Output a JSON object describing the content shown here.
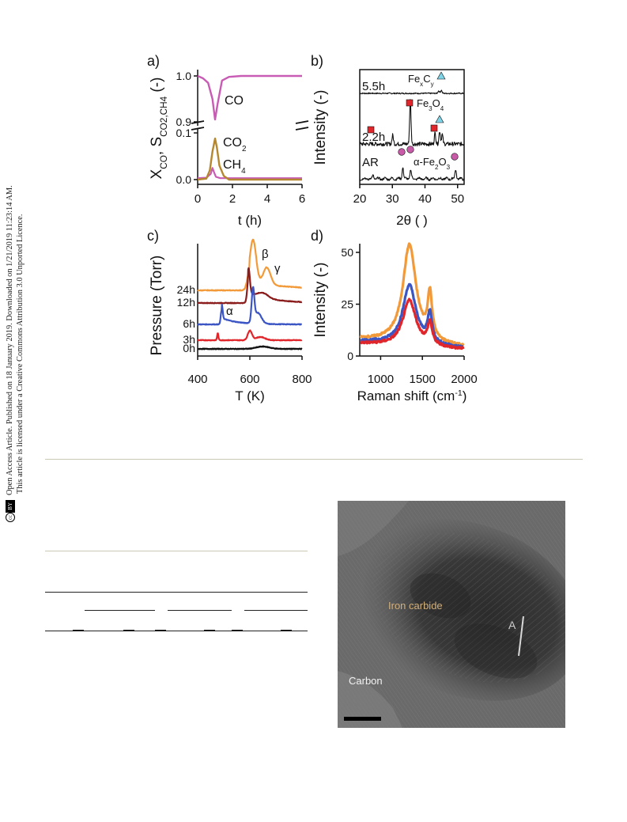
{
  "sidenote": {
    "cc_label": "cc",
    "by_label": "BY",
    "line1": "Open Access Article. Published on 18 January 2019. Downloaded on 1/21/2019 11:23:14 AM.",
    "line2": "This article is licensed under a Creative Commons Attribution 3.0 Unported Licence."
  },
  "colors": {
    "magenta": "#c85bb4",
    "gold": "#b5872e",
    "orange": "#f29a3a",
    "darkred": "#8a1c1c",
    "blue": "#3b55c4",
    "red": "#e0262b",
    "black": "#111111",
    "marker_red": "#e0262b",
    "marker_cyan": "#7fd3e6",
    "marker_pink": "#c95aa8"
  },
  "figure": {
    "panels": [
      {
        "label": "a)",
        "chart_data": {
          "type": "line",
          "xlabel": "t (h)",
          "ylabel_main": "X",
          "ylabel_main_sub": "CO",
          "ylabel_sep": ",  ",
          "ylabel_s": "S",
          "ylabel_s_sub": "CO2,CH4",
          "ylabel_unit": " (-)",
          "x_ticks": [
            "0",
            "2",
            "4",
            "6"
          ],
          "xlim": [
            0,
            6
          ],
          "upper_ylim": [
            0.9,
            1.0
          ],
          "lower_ylim": [
            0.0,
            0.1
          ],
          "y_ticks": [
            "1.0",
            "0.9",
            "0.1",
            "0.0"
          ],
          "series": [
            {
              "name": "CO",
              "x": [
                0,
                0.3,
                0.6,
                0.85,
                1.0,
                1.15,
                1.4,
                1.8,
                2.5,
                6
              ],
              "y": [
                1.0,
                0.995,
                0.985,
                0.95,
                0.905,
                0.94,
                0.99,
                0.998,
                1.0,
                1.0
              ]
            },
            {
              "name": "CO2",
              "x": [
                0,
                0.5,
                0.7,
                0.85,
                1.0,
                1.1,
                1.25,
                1.5,
                1.8,
                6
              ],
              "y": [
                0,
                0.002,
                0.02,
                0.06,
                0.088,
                0.07,
                0.03,
                0.008,
                0.0,
                0.0
              ]
            },
            {
              "name": "CH4",
              "x": [
                0,
                0.5,
                0.75,
                0.85,
                0.95,
                1.05,
                1.3,
                1.6,
                6
              ],
              "y": [
                0.003,
                0.004,
                0.012,
                0.025,
                0.015,
                0.006,
                0.003,
                0.003,
                0.003
              ]
            }
          ],
          "annotations": [
            {
              "text": "CO",
              "series": "CO"
            },
            {
              "text": "CO",
              "sub": "2",
              "series": "CO2"
            },
            {
              "text": "CH",
              "sub": "4",
              "series": "CH4"
            }
          ]
        }
      },
      {
        "label": "b)",
        "chart_data": {
          "type": "line",
          "xlabel": "2θ (  )",
          "ylabel": "Intensity (-)",
          "x_ticks": [
            "20",
            "30",
            "40",
            "50"
          ],
          "xlim": [
            20,
            52
          ],
          "series": [
            {
              "name": "5.5h",
              "peaks": [
                [
                  45.0,
                  0.22
                ],
                [
                  44.2,
                  0.18
                ]
              ]
            },
            {
              "name": "2.2h",
              "peaks": [
                [
                  30.1,
                  0.2
                ],
                [
                  35.5,
                  1.0
                ],
                [
                  43.1,
                  0.25
                ],
                [
                  44.5,
                  0.3
                ],
                [
                  45.3,
                  0.22
                ]
              ]
            },
            {
              "name": "AR",
              "peaks": [
                [
                  33.2,
                  0.5
                ],
                [
                  35.6,
                  0.4
                ],
                [
                  49.4,
                  0.4
                ],
                [
                  24.1,
                  0.15
                ]
              ]
            }
          ],
          "labels": [
            {
              "text": "5.5h"
            },
            {
              "text": "2.2h"
            },
            {
              "text": "AR"
            }
          ],
          "phase_labels": [
            {
              "text": "Fe",
              "sub1": "x",
              "mid": "C",
              "sub2": "y"
            },
            {
              "text": "Fe",
              "sub1": "3",
              "mid": "O",
              "sub2": "4"
            },
            {
              "text": "α-Fe",
              "sub1": "2",
              "mid": "O",
              "sub2": "3"
            }
          ]
        }
      },
      {
        "label": "c)",
        "chart_data": {
          "type": "line",
          "xlabel": "T (K)",
          "ylabel": "Pressure (Torr)",
          "x_ticks": [
            "400",
            "600",
            "800"
          ],
          "xlim": [
            400,
            800
          ],
          "series": [
            {
              "name": "24h",
              "color": "orange"
            },
            {
              "name": "12h",
              "color": "darkred"
            },
            {
              "name": "6h",
              "color": "blue"
            },
            {
              "name": "3h",
              "color": "red"
            },
            {
              "name": "0h",
              "color": "black"
            }
          ],
          "peak_labels": [
            "α",
            "β",
            "γ"
          ]
        }
      },
      {
        "label": "d)",
        "chart_data": {
          "type": "line",
          "xlabel": "Raman shift (cm",
          "xlabel_sup": "-1",
          "xlabel_end": ")",
          "ylabel": "Intensity (-)",
          "x_ticks": [
            "1000",
            "1500",
            "2000"
          ],
          "y_ticks": [
            "0",
            "25",
            "50"
          ],
          "xlim": [
            750,
            2000
          ],
          "ylim": [
            0,
            55
          ],
          "series": [
            {
              "color": "orange",
              "D": 51,
              "G": 47,
              "base": 8
            },
            {
              "color": "blue",
              "D": 32,
              "G": 30,
              "base": 7
            },
            {
              "color": "red",
              "D": 25,
              "G": 23,
              "base": 6
            }
          ]
        }
      }
    ]
  },
  "micrograph": {
    "label_iron_carbide": "Iron carbide",
    "label_a": "A",
    "label_carbon": "Carbon"
  }
}
